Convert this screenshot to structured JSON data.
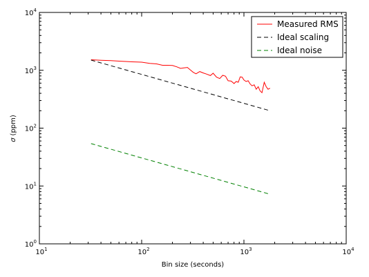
{
  "chart_data": {
    "type": "line",
    "title": "",
    "xlabel": "Bin size (seconds)",
    "ylabel_symbol": "σ",
    "ylabel_unit": "(ppm)",
    "xscale": "log",
    "yscale": "log",
    "xlim": [
      10,
      10000
    ],
    "ylim": [
      1,
      10000
    ],
    "x_ticks": [
      {
        "value": 10,
        "base": "10",
        "exp": "1"
      },
      {
        "value": 100,
        "base": "10",
        "exp": "2"
      },
      {
        "value": 1000,
        "base": "10",
        "exp": "3"
      },
      {
        "value": 10000,
        "base": "10",
        "exp": "4"
      }
    ],
    "y_ticks": [
      {
        "value": 1,
        "base": "10",
        "exp": "0"
      },
      {
        "value": 10,
        "base": "10",
        "exp": "1"
      },
      {
        "value": 100,
        "base": "10",
        "exp": "2"
      },
      {
        "value": 1000,
        "base": "10",
        "exp": "3"
      },
      {
        "value": 10000,
        "base": "10",
        "exp": "4"
      }
    ],
    "grid": false,
    "legend_position": "top-right",
    "series": [
      {
        "name": "Measured RMS",
        "color": "#ff0000",
        "style": "solid",
        "x": [
          32,
          40,
          50,
          60,
          70,
          80,
          90,
          100,
          120,
          140,
          160,
          180,
          200,
          220,
          240,
          260,
          280,
          300,
          320,
          340,
          370,
          400,
          430,
          470,
          500,
          540,
          580,
          620,
          660,
          700,
          750,
          800,
          840,
          880,
          920,
          960,
          1000,
          1050,
          1100,
          1150,
          1200,
          1260,
          1320,
          1380,
          1440,
          1500,
          1580,
          1650,
          1720,
          1800
        ],
        "y": [
          1520,
          1490,
          1470,
          1440,
          1420,
          1400,
          1390,
          1380,
          1320,
          1290,
          1220,
          1220,
          1210,
          1150,
          1080,
          1100,
          1120,
          1010,
          920,
          870,
          950,
          900,
          860,
          810,
          890,
          760,
          720,
          820,
          790,
          660,
          650,
          590,
          640,
          620,
          770,
          760,
          680,
          640,
          660,
          580,
          540,
          560,
          470,
          520,
          440,
          410,
          620,
          520,
          470,
          490
        ]
      },
      {
        "name": "Ideal scaling",
        "color": "#000000",
        "style": "dashed",
        "x": [
          32,
          1800
        ],
        "y": [
          1500,
          200
        ]
      },
      {
        "name": "Ideal noise",
        "color": "#008000",
        "style": "dashed",
        "x": [
          32,
          1800
        ],
        "y": [
          54,
          7.2
        ]
      }
    ]
  }
}
